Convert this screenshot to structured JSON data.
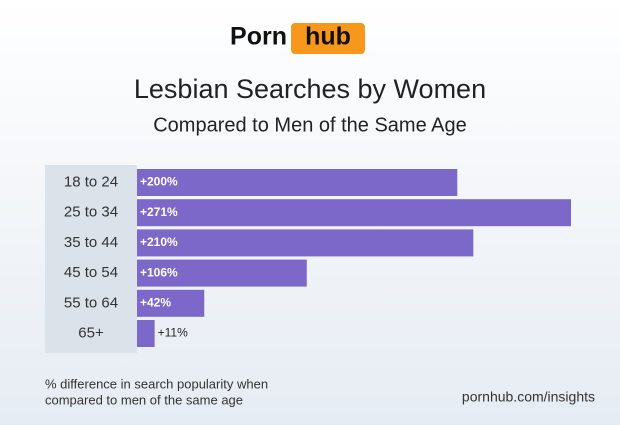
{
  "logo": {
    "left": "Porn",
    "right": "hub"
  },
  "chart_data": {
    "type": "bar",
    "orientation": "horizontal",
    "title": "Lesbian Searches by Women",
    "subtitle": "Compared to Men of the Same Age",
    "categories": [
      "18 to 24",
      "25 to 34",
      "35 to 44",
      "45 to 54",
      "55 to 64",
      "65+"
    ],
    "values": [
      200,
      271,
      210,
      106,
      42,
      11
    ],
    "value_labels": [
      "+200%",
      "+271%",
      "+210%",
      "+106%",
      "+42%",
      "+11%"
    ],
    "color": "#7b68c9",
    "footnote": [
      "% difference in search popularity when",
      "compared to men of the same age"
    ],
    "source": "pornhub.com/insights"
  }
}
